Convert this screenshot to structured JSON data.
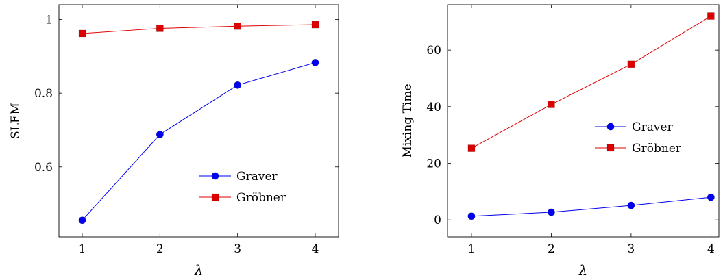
{
  "chart_data": [
    {
      "type": "line",
      "xlabel": "λ",
      "ylabel": "SLEM",
      "x": [
        1,
        2,
        3,
        4
      ],
      "xlim": [
        0.7,
        4.3
      ],
      "ylim": [
        0.41,
        1.04
      ],
      "xticks": [
        1,
        2,
        3,
        4
      ],
      "yticks": [
        0.6,
        0.8,
        1
      ],
      "grid": false,
      "legend_position": "lower-right",
      "series": [
        {
          "name": "Graver",
          "values": [
            0.455,
            0.688,
            0.822,
            0.883
          ],
          "color": "#0000ee",
          "marker": "circle"
        },
        {
          "name": "Gröbner",
          "values": [
            0.962,
            0.976,
            0.982,
            0.986
          ],
          "color": "#dd0000",
          "marker": "square"
        }
      ]
    },
    {
      "type": "line",
      "xlabel": "λ",
      "ylabel": "Mixing Time",
      "x": [
        1,
        2,
        3,
        4
      ],
      "xlim": [
        0.7,
        4.1
      ],
      "ylim": [
        -6,
        76
      ],
      "xticks": [
        1,
        2,
        3,
        4
      ],
      "yticks": [
        0,
        20,
        40,
        60
      ],
      "grid": false,
      "legend_position": "right",
      "series": [
        {
          "name": "Graver",
          "values": [
            1.3,
            2.7,
            5.1,
            8.0
          ],
          "color": "#0000ee",
          "marker": "circle"
        },
        {
          "name": "Gröbner",
          "values": [
            25.3,
            40.8,
            55.0,
            72.0
          ],
          "color": "#dd0000",
          "marker": "square"
        }
      ]
    }
  ]
}
